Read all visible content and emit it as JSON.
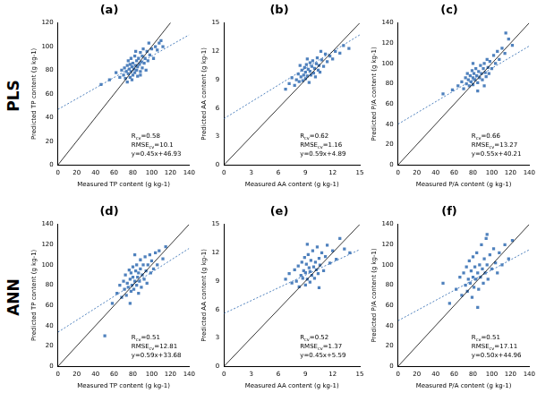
{
  "row_labels": [
    "PLS",
    "ANN"
  ],
  "chart_data": [
    {
      "type": "scatter",
      "title": "(a)",
      "x_label": "Measured TP content (g kg-1)",
      "y_label": "Predicted TP content (g kg-1)",
      "xlim": [
        0,
        140
      ],
      "xticks": [
        0,
        20,
        40,
        60,
        80,
        100,
        120,
        140
      ],
      "ylim": [
        0,
        120
      ],
      "yticks": [
        0,
        20,
        40,
        60,
        80,
        100,
        120
      ],
      "color": "#4f81bd",
      "marker": "square",
      "grid": false,
      "annotations": [
        "Rcv=0.58",
        "RMSEcv=10.1",
        "y=0.45x+46.93"
      ],
      "lines": [
        {
          "slope": 1,
          "intercept": 0,
          "color": "#000000",
          "line_style": "solid"
        },
        {
          "slope": 0.45,
          "intercept": 46.93,
          "color": "#4f81bd",
          "line_style": "dotted"
        }
      ],
      "x": [
        46,
        55,
        62,
        66,
        68,
        70,
        71,
        72,
        73,
        74,
        75,
        75,
        76,
        77,
        77,
        78,
        78,
        79,
        80,
        80,
        81,
        82,
        82,
        83,
        84,
        84,
        85,
        85,
        86,
        87,
        88,
        88,
        89,
        90,
        90,
        91,
        92,
        93,
        94,
        95,
        96,
        97,
        98,
        100,
        102,
        104,
        106,
        108,
        110,
        112,
        88,
        79,
        74,
        83
      ],
      "values": [
        68,
        72,
        78,
        74,
        80,
        76,
        82,
        73,
        79,
        84,
        77,
        88,
        81,
        74,
        85,
        79,
        90,
        83,
        76,
        86,
        81,
        92,
        78,
        84,
        88,
        80,
        75,
        83,
        90,
        85,
        79,
        95,
        87,
        82,
        92,
        98,
        86,
        90,
        80,
        96,
        88,
        103,
        93,
        98,
        90,
        100,
        97,
        103,
        105,
        100,
        76,
        72,
        70,
        96
      ]
    },
    {
      "type": "scatter",
      "title": "(b)",
      "x_label": "Measured AA content (g kg-1)",
      "y_label": "Predicted AA content (g kg-1)",
      "xlim": [
        0,
        15
      ],
      "xticks": [
        0,
        3,
        6,
        9,
        12,
        15
      ],
      "ylim": [
        0,
        15
      ],
      "yticks": [
        0,
        3,
        6,
        9,
        12,
        15
      ],
      "color": "#4f81bd",
      "marker": "square",
      "grid": false,
      "annotations": [
        "Rcv=0.62",
        "RMSEcv=1.16",
        "y=0.59x+4.89"
      ],
      "lines": [
        {
          "slope": 1,
          "intercept": 0,
          "color": "#000000",
          "line_style": "solid"
        },
        {
          "slope": 0.59,
          "intercept": 4.89,
          "color": "#4f81bd",
          "line_style": "dotted"
        }
      ],
      "x": [
        6.8,
        7.2,
        7.5,
        7.8,
        8.0,
        8.2,
        8.3,
        8.5,
        8.6,
        8.7,
        8.8,
        8.9,
        9.0,
        9.0,
        9.1,
        9.2,
        9.3,
        9.4,
        9.5,
        9.5,
        9.6,
        9.7,
        9.8,
        9.9,
        10.0,
        10.1,
        10.2,
        10.3,
        10.4,
        10.5,
        10.6,
        10.8,
        11.0,
        11.2,
        11.4,
        11.7,
        12.0,
        12.3,
        12.8,
        13.2,
        13.8,
        9.2,
        8.4,
        10.7
      ],
      "values": [
        8.0,
        8.6,
        9.2,
        8.4,
        9.0,
        9.6,
        8.8,
        9.3,
        10.0,
        8.9,
        9.5,
        10.3,
        9.1,
        9.8,
        10.6,
        9.4,
        10.1,
        8.7,
        9.9,
        10.8,
        9.5,
        10.4,
        11.0,
        9.7,
        10.2,
        9.3,
        10.7,
        11.3,
        10.0,
        10.5,
        9.8,
        11.1,
        10.4,
        11.7,
        10.9,
        11.5,
        11.2,
        12.0,
        11.8,
        12.6,
        12.3,
        11.2,
        10.5,
        12.0
      ]
    },
    {
      "type": "scatter",
      "title": "(c)",
      "x_label": "Measured P/A content (g kg-1)",
      "y_label": "Predicted P/A content (g kg-1)",
      "xlim": [
        0,
        140
      ],
      "xticks": [
        0,
        20,
        40,
        60,
        80,
        100,
        120,
        140
      ],
      "ylim": [
        0,
        140
      ],
      "yticks": [
        0,
        20,
        40,
        60,
        80,
        100,
        120,
        140
      ],
      "color": "#4f81bd",
      "marker": "square",
      "grid": false,
      "annotations": [
        "Rcv=0.66",
        "RMSEcv=13.27",
        "y=0.55x+40.21"
      ],
      "lines": [
        {
          "slope": 1,
          "intercept": 0,
          "color": "#000000",
          "line_style": "solid"
        },
        {
          "slope": 0.55,
          "intercept": 40.21,
          "color": "#4f81bd",
          "line_style": "dotted"
        }
      ],
      "x": [
        48,
        58,
        64,
        68,
        70,
        72,
        73,
        74,
        75,
        76,
        77,
        78,
        79,
        80,
        80,
        81,
        82,
        83,
        84,
        85,
        86,
        87,
        88,
        89,
        90,
        91,
        92,
        93,
        94,
        95,
        96,
        97,
        98,
        100,
        102,
        104,
        106,
        108,
        111,
        114,
        118,
        122,
        85,
        92,
        80,
        115
      ],
      "values": [
        70,
        74,
        78,
        82,
        75,
        86,
        80,
        90,
        84,
        78,
        88,
        82,
        93,
        86,
        79,
        90,
        84,
        95,
        88,
        81,
        92,
        86,
        98,
        90,
        84,
        95,
        100,
        91,
        87,
        104,
        96,
        90,
        102,
        95,
        108,
        100,
        112,
        104,
        115,
        110,
        124,
        118,
        73,
        78,
        100,
        130
      ]
    },
    {
      "type": "scatter",
      "title": "(d)",
      "x_label": "Measured TP content (g kg-1)",
      "y_label": "Predicted TP content (g kg-1)",
      "xlim": [
        0,
        140
      ],
      "xticks": [
        0,
        20,
        40,
        60,
        80,
        100,
        120,
        140
      ],
      "ylim": [
        0,
        140
      ],
      "yticks": [
        0,
        20,
        40,
        60,
        80,
        100,
        120,
        140
      ],
      "color": "#4f81bd",
      "marker": "square",
      "grid": false,
      "annotations": [
        "Rcv=0.51",
        "RMSEcv=12.81",
        "y=0.59x+33.68"
      ],
      "lines": [
        {
          "slope": 1,
          "intercept": 0,
          "color": "#000000",
          "line_style": "solid"
        },
        {
          "slope": 0.59,
          "intercept": 33.68,
          "color": "#4f81bd",
          "line_style": "dotted"
        }
      ],
      "x": [
        50,
        58,
        63,
        66,
        68,
        70,
        71,
        72,
        73,
        74,
        75,
        76,
        77,
        78,
        78,
        79,
        80,
        80,
        81,
        82,
        83,
        84,
        84,
        85,
        86,
        86,
        87,
        88,
        88,
        89,
        90,
        91,
        92,
        93,
        94,
        95,
        96,
        98,
        99,
        100,
        102,
        104,
        106,
        108,
        112,
        115,
        82,
        77
      ],
      "values": [
        30,
        62,
        72,
        80,
        68,
        84,
        76,
        90,
        70,
        82,
        78,
        95,
        86,
        74,
        92,
        80,
        88,
        98,
        76,
        84,
        94,
        80,
        100,
        88,
        72,
        92,
        84,
        105,
        96,
        78,
        90,
        100,
        86,
        108,
        94,
        82,
        100,
        110,
        92,
        104,
        96,
        112,
        100,
        114,
        106,
        118,
        110,
        62
      ]
    },
    {
      "type": "scatter",
      "title": "(e)",
      "x_label": "Measured AA content (g kg-1)",
      "y_label": "Predicted AA content (g kg-1)",
      "xlim": [
        0,
        15
      ],
      "xticks": [
        0,
        3,
        6,
        9,
        12,
        15
      ],
      "ylim": [
        0,
        15
      ],
      "yticks": [
        0,
        3,
        6,
        9,
        12,
        15
      ],
      "color": "#4f81bd",
      "marker": "square",
      "grid": false,
      "annotations": [
        "Rcv=0.52",
        "RMSEcv=1.37",
        "y=0.45x+5.59"
      ],
      "lines": [
        {
          "slope": 1,
          "intercept": 0,
          "color": "#000000",
          "line_style": "solid"
        },
        {
          "slope": 0.45,
          "intercept": 5.59,
          "color": "#4f81bd",
          "line_style": "dotted"
        }
      ],
      "x": [
        6.8,
        7.2,
        7.5,
        7.8,
        8.0,
        8.2,
        8.3,
        8.5,
        8.6,
        8.7,
        8.8,
        8.9,
        9.0,
        9.0,
        9.1,
        9.2,
        9.3,
        9.4,
        9.5,
        9.5,
        9.6,
        9.7,
        9.8,
        9.9,
        10.0,
        10.1,
        10.2,
        10.3,
        10.4,
        10.5,
        10.6,
        10.8,
        11.0,
        11.2,
        11.4,
        11.7,
        12.0,
        12.4,
        12.8,
        13.3,
        13.9,
        9.2,
        10.5
      ],
      "values": [
        9.2,
        9.8,
        8.8,
        10.2,
        9.0,
        10.6,
        8.4,
        9.6,
        11.0,
        9.3,
        10.1,
        11.5,
        8.6,
        9.9,
        10.8,
        9.2,
        11.8,
        10.4,
        8.9,
        10.0,
        11.2,
        9.6,
        12.2,
        10.5,
        9.3,
        11.0,
        10.2,
        12.6,
        9.8,
        11.4,
        10.7,
        12.0,
        10.1,
        11.6,
        12.8,
        10.9,
        12.2,
        11.3,
        13.5,
        12.4,
        12.0,
        12.9,
        8.3
      ]
    },
    {
      "type": "scatter",
      "title": "(f)",
      "x_label": "Measured P/A content (g kg-1)",
      "y_label": "Predicted P/A content (g kg-1)",
      "xlim": [
        0,
        140
      ],
      "xticks": [
        0,
        20,
        40,
        60,
        80,
        100,
        120,
        140
      ],
      "ylim": [
        0,
        140
      ],
      "yticks": [
        0,
        20,
        40,
        60,
        80,
        100,
        120,
        140
      ],
      "color": "#4f81bd",
      "marker": "square",
      "grid": false,
      "annotations": [
        "Rcv=0.51",
        "RMSEcv=17.11",
        "y=0.50x+44.96"
      ],
      "lines": [
        {
          "slope": 1,
          "intercept": 0,
          "color": "#000000",
          "line_style": "solid"
        },
        {
          "slope": 0.5,
          "intercept": 44.96,
          "color": "#4f81bd",
          "line_style": "dotted"
        }
      ],
      "x": [
        48,
        55,
        62,
        66,
        68,
        70,
        72,
        73,
        74,
        75,
        76,
        77,
        78,
        79,
        80,
        80,
        81,
        82,
        83,
        84,
        85,
        86,
        87,
        88,
        89,
        90,
        91,
        92,
        93,
        94,
        95,
        96,
        98,
        100,
        102,
        104,
        106,
        108,
        111,
        114,
        118,
        122,
        85,
        95
      ],
      "values": [
        82,
        62,
        76,
        88,
        70,
        92,
        80,
        98,
        74,
        86,
        104,
        82,
        94,
        68,
        88,
        108,
        78,
        98,
        86,
        112,
        92,
        76,
        100,
        88,
        120,
        96,
        82,
        106,
        92,
        126,
        100,
        86,
        110,
        96,
        116,
        102,
        92,
        112,
        100,
        120,
        106,
        124,
        58,
        130
      ]
    }
  ]
}
